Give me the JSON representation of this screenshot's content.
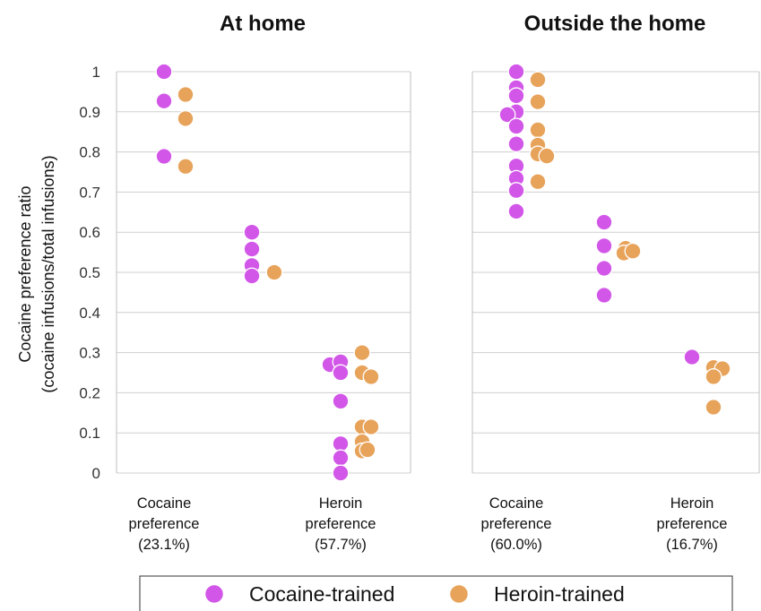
{
  "chart_data": {
    "type": "scatter",
    "ylabel_line1": "Cocaine preference ratio",
    "ylabel_line2": "(cocaine infusions/total infusions)",
    "ylim": [
      0,
      1
    ],
    "yticks": [
      "0",
      "0.1",
      "0.2",
      "0.3",
      "0.4",
      "0.5",
      "0.6",
      "0.7",
      "0.8",
      "0.9",
      "1"
    ],
    "grid": true,
    "legend": {
      "placement": "bottom",
      "entries": [
        {
          "name": "Cocaine-trained",
          "color": "#d257e8"
        },
        {
          "name": "Heroin-trained",
          "color": "#e8a35b"
        }
      ]
    },
    "panels": [
      {
        "title": "At home",
        "categories": [
          {
            "line1": "Cocaine",
            "line2": "preference",
            "line3": "(23.1%)"
          },
          {
            "line1": "",
            "line2": "",
            "line3": ""
          },
          {
            "line1": "Heroin",
            "line2": "preference",
            "line3": "(57.7%)"
          }
        ],
        "series": [
          {
            "name": "Cocaine-trained",
            "points": [
              {
                "group": 0,
                "y": 1.0
              },
              {
                "group": 0,
                "y": 0.927
              },
              {
                "group": 0,
                "y": 0.789
              },
              {
                "group": 1,
                "y": 0.6
              },
              {
                "group": 1,
                "y": 0.558
              },
              {
                "group": 1,
                "y": 0.517
              },
              {
                "group": 1,
                "y": 0.491
              },
              {
                "group": 2,
                "y": 0.27
              },
              {
                "group": 2,
                "y": 0.277
              },
              {
                "group": 2,
                "y": 0.25
              },
              {
                "group": 2,
                "y": 0.179
              },
              {
                "group": 2,
                "y": 0.073
              },
              {
                "group": 2,
                "y": 0.038
              },
              {
                "group": 2,
                "y": 0.0
              }
            ]
          },
          {
            "name": "Heroin-trained",
            "points": [
              {
                "group": 0,
                "y": 0.943
              },
              {
                "group": 0,
                "y": 0.883
              },
              {
                "group": 0,
                "y": 0.764
              },
              {
                "group": 1,
                "y": 0.5
              },
              {
                "group": 2,
                "y": 0.3
              },
              {
                "group": 2,
                "y": 0.25
              },
              {
                "group": 2,
                "y": 0.24
              },
              {
                "group": 2,
                "y": 0.115
              },
              {
                "group": 2,
                "y": 0.115
              },
              {
                "group": 2,
                "y": 0.078
              },
              {
                "group": 2,
                "y": 0.055
              },
              {
                "group": 2,
                "y": 0.058
              }
            ]
          }
        ]
      },
      {
        "title": "Outside the home",
        "categories": [
          {
            "line1": "Cocaine",
            "line2": "preference",
            "line3": "(60.0%)"
          },
          {
            "line1": "",
            "line2": "",
            "line3": ""
          },
          {
            "line1": "Heroin",
            "line2": "preference",
            "line3": "(16.7%)"
          }
        ],
        "series": [
          {
            "name": "Cocaine-trained",
            "points": [
              {
                "group": 0,
                "y": 1.0
              },
              {
                "group": 0,
                "y": 0.96
              },
              {
                "group": 0,
                "y": 0.94
              },
              {
                "group": 0,
                "y": 0.9
              },
              {
                "group": 0,
                "y": 0.893
              },
              {
                "group": 0,
                "y": 0.864
              },
              {
                "group": 0,
                "y": 0.82
              },
              {
                "group": 0,
                "y": 0.765
              },
              {
                "group": 0,
                "y": 0.734
              },
              {
                "group": 0,
                "y": 0.704
              },
              {
                "group": 0,
                "y": 0.652
              },
              {
                "group": 1,
                "y": 0.625
              },
              {
                "group": 1,
                "y": 0.566
              },
              {
                "group": 1,
                "y": 0.51
              },
              {
                "group": 1,
                "y": 0.443
              },
              {
                "group": 2,
                "y": 0.289
              }
            ]
          },
          {
            "name": "Heroin-trained",
            "points": [
              {
                "group": 0,
                "y": 0.98
              },
              {
                "group": 0,
                "y": 0.925
              },
              {
                "group": 0,
                "y": 0.855
              },
              {
                "group": 0,
                "y": 0.817
              },
              {
                "group": 0,
                "y": 0.795
              },
              {
                "group": 0,
                "y": 0.79
              },
              {
                "group": 0,
                "y": 0.726
              },
              {
                "group": 1,
                "y": 0.56
              },
              {
                "group": 1,
                "y": 0.548
              },
              {
                "group": 1,
                "y": 0.553
              },
              {
                "group": 2,
                "y": 0.263
              },
              {
                "group": 2,
                "y": 0.26
              },
              {
                "group": 2,
                "y": 0.24
              },
              {
                "group": 2,
                "y": 0.164
              }
            ]
          }
        ]
      }
    ]
  }
}
